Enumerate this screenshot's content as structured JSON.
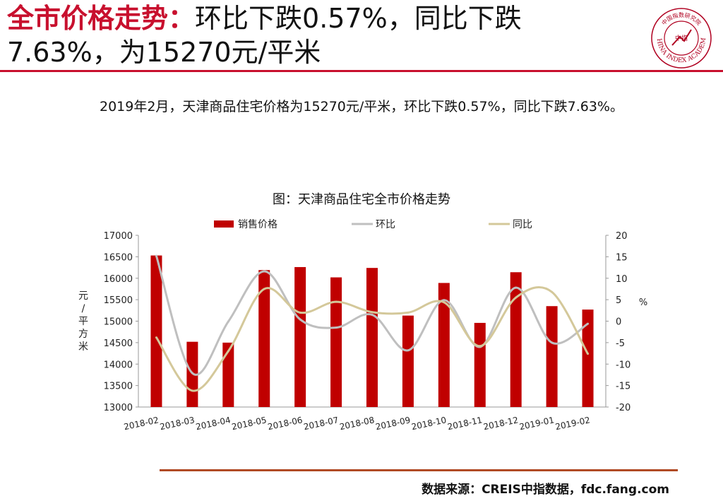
{
  "header": {
    "title_highlight": "全市价格走势：",
    "title_rest": "环比下跌0.57%，同比下跌7.63%，为15270元/平米",
    "logo_ring_text": "CHINA INDEX ACADEMY",
    "logo_top_text": "中国指数研究院",
    "logo_center_text": "中指"
  },
  "summary": "2019年2月，天津商品住宅价格为15270元/平米，环比下跌0.57%，同比下跌7.63%。",
  "colors": {
    "accent": "#c8102e",
    "bar": "#c00000",
    "mom_line": "#bfbfbf",
    "yoy_line": "#d4c89a",
    "rule_bottom": "#b04a24"
  },
  "chart_data": {
    "type": "bar",
    "title": "图：天津商品住宅全市价格走势",
    "categories": [
      "2018-02",
      "2018-03",
      "2018-04",
      "2018-05",
      "2018-06",
      "2018-07",
      "2018-08",
      "2018-09",
      "2018-10",
      "2018-11",
      "2018-12",
      "2019-01",
      "2019-02"
    ],
    "series": [
      {
        "name": "销售价格",
        "type": "bar",
        "axis": "left",
        "values": [
          16530,
          14520,
          14500,
          16190,
          16260,
          16020,
          16240,
          15130,
          15890,
          14960,
          16140,
          15350,
          15270
        ]
      },
      {
        "name": "环比",
        "type": "line",
        "axis": "right",
        "values": [
          15.2,
          -12.1,
          -0.1,
          11.6,
          0.4,
          -1.5,
          1.5,
          -6.8,
          4.9,
          -6.0,
          7.8,
          -5.0,
          -0.6
        ]
      },
      {
        "name": "同比",
        "type": "line",
        "axis": "right",
        "values": [
          -3.8,
          -16.2,
          -7.0,
          7.5,
          2.0,
          4.5,
          2.1,
          2.0,
          4.4,
          -5.8,
          5.5,
          6.8,
          -7.6
        ]
      }
    ],
    "ylabel": "元/平方米",
    "y2label": "%",
    "ylim": [
      13000,
      17000
    ],
    "y_ticks": [
      13000,
      13500,
      14000,
      14500,
      15000,
      15500,
      16000,
      16500,
      17000
    ],
    "y2lim": [
      -20,
      20
    ],
    "y2_ticks": [
      -20,
      -15,
      -10,
      -5,
      0,
      5,
      10,
      15,
      20
    ],
    "grid": false,
    "legend": "top"
  },
  "source": "数据来源：CREIS中指数据，fdc.fang.com"
}
